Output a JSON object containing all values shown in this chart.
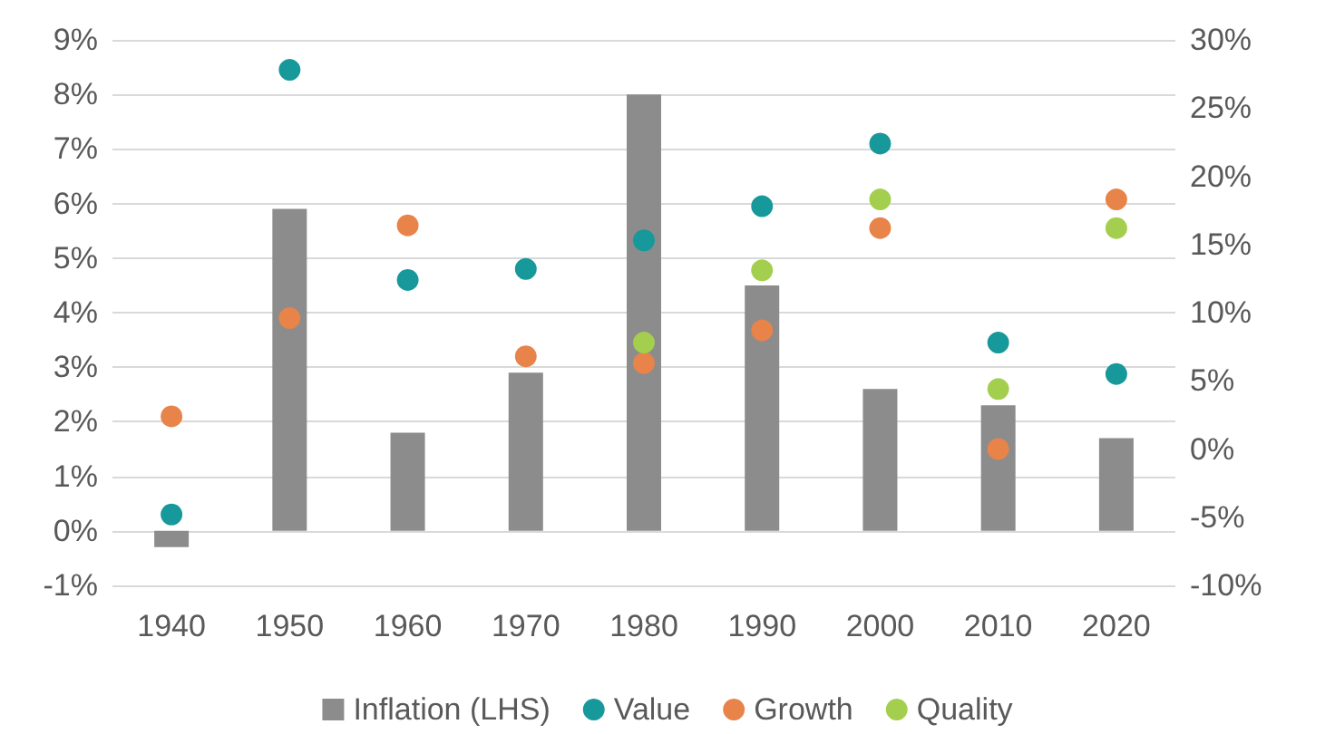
{
  "chart_data": {
    "type": "bar",
    "categories": [
      "1940",
      "1950",
      "1960",
      "1970",
      "1980",
      "1990",
      "2000",
      "2010",
      "2020"
    ],
    "series": [
      {
        "name": "Inflation (LHS)",
        "color": "#8c8c8c",
        "values": [
          -0.3,
          5.9,
          1.8,
          2.9,
          8.0,
          4.5,
          2.6,
          2.3,
          1.7
        ]
      },
      {
        "name": "Value",
        "type": "scatter",
        "axis": "y2",
        "color": "#17989a",
        "values": [
          -4.8,
          27.8,
          12.4,
          13.2,
          15.3,
          17.8,
          22.4,
          7.8,
          5.5
        ]
      },
      {
        "name": "Growth",
        "type": "scatter",
        "axis": "y2",
        "color": "#e8834a",
        "values": [
          2.4,
          9.6,
          16.4,
          6.8,
          6.3,
          8.7,
          16.2,
          0.0,
          18.3
        ]
      },
      {
        "name": "Quality",
        "type": "scatter",
        "axis": "y2",
        "color": "#a4cf4e",
        "values": [
          null,
          null,
          null,
          null,
          7.8,
          13.1,
          18.3,
          4.4,
          16.2
        ]
      }
    ],
    "ylim": [
      -1,
      9
    ],
    "yticks": [
      {
        "value": -1,
        "label": "-1%"
      },
      {
        "value": 0,
        "label": "0%"
      },
      {
        "value": 1,
        "label": "1%"
      },
      {
        "value": 2,
        "label": "2%"
      },
      {
        "value": 3,
        "label": "3%"
      },
      {
        "value": 4,
        "label": "4%"
      },
      {
        "value": 5,
        "label": "5%"
      },
      {
        "value": 6,
        "label": "6%"
      },
      {
        "value": 7,
        "label": "7%"
      },
      {
        "value": 8,
        "label": "8%"
      },
      {
        "value": 9,
        "label": "9%"
      }
    ],
    "y2lim": [
      -10,
      30
    ],
    "y2ticks": [
      {
        "value": -10,
        "label": "-10%"
      },
      {
        "value": -5,
        "label": "-5%"
      },
      {
        "value": 0,
        "label": "0%"
      },
      {
        "value": 5,
        "label": "5%"
      },
      {
        "value": 10,
        "label": "10%"
      },
      {
        "value": 15,
        "label": "15%"
      },
      {
        "value": 20,
        "label": "20%"
      },
      {
        "value": 25,
        "label": "25%"
      },
      {
        "value": 30,
        "label": "30%"
      }
    ],
    "grid": "y",
    "legend": "bottom",
    "marker": "circle"
  }
}
